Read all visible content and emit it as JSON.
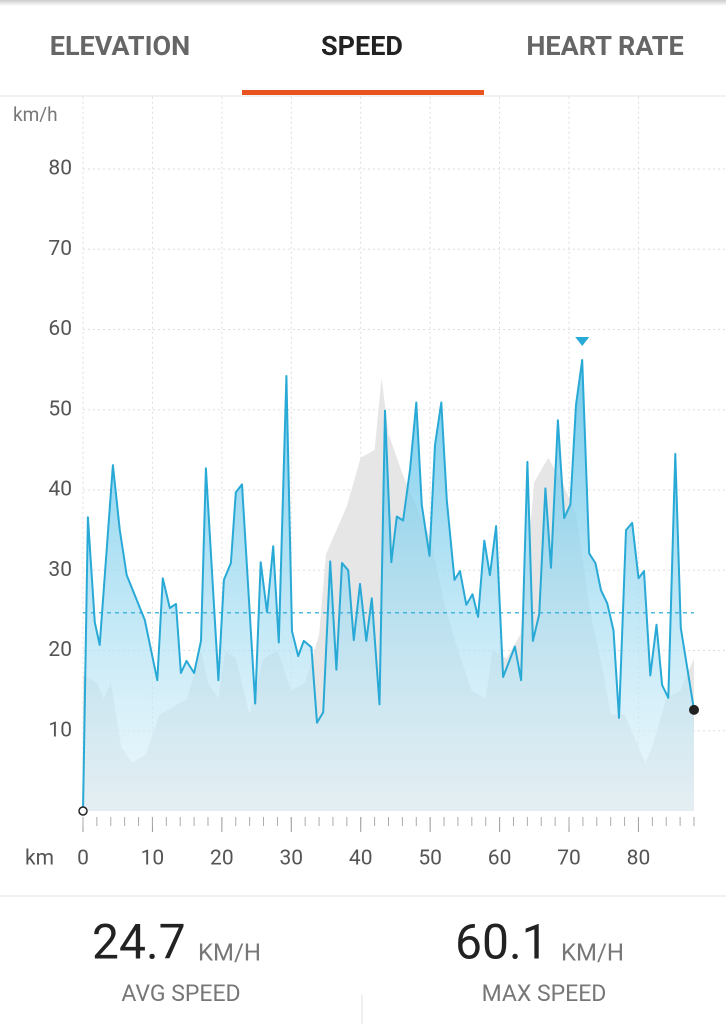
{
  "tabs": [
    "ELEVATION",
    "SPEED",
    "HEART RATE"
  ],
  "chart_data": {
    "type": "area",
    "y_unit": "km/h",
    "x_unit": "km",
    "xlim": [
      0,
      88
    ],
    "ylim": [
      0,
      89
    ],
    "xticks": [
      0,
      10,
      20,
      30,
      40,
      50,
      60,
      70,
      80
    ],
    "yticks": [
      10,
      20,
      30,
      40,
      50,
      60,
      70,
      80
    ],
    "grid": true,
    "series": [
      {
        "color": "#29a9d6",
        "x": [
          0,
          0.7,
          1.7,
          2.4,
          4.3,
          5.3,
          6.3,
          8.9,
          10.7,
          11.5,
          12.5,
          13.4,
          14.1,
          14.9,
          16,
          17,
          17.7,
          19.5,
          20.3,
          21.3,
          22,
          22.9,
          24.8,
          25.6,
          26.5,
          27.4,
          28.2,
          29.3,
          30.1,
          31,
          31.8,
          32.9,
          33.7,
          34.6,
          35.6,
          36.5,
          37.3,
          38.2,
          39,
          39.9,
          40.8,
          41.6,
          42.7,
          43.5,
          44.4,
          45.2,
          46.1,
          47.1,
          48,
          48.8,
          49.9,
          50.7,
          51.6,
          52.4,
          53.5,
          54.3,
          55.2,
          56.1,
          56.9,
          57.8,
          58.6,
          59.5,
          60.5,
          62.2,
          63.1,
          64,
          64.8,
          65.7,
          66.6,
          67.4,
          68.4,
          69.3,
          70.2,
          71,
          71.9,
          72.9,
          73.8,
          74.6,
          75.5,
          76.4,
          77.2,
          78.2,
          79.1,
          80,
          80.8,
          81.7,
          82.6,
          83.4,
          84.3,
          85.3,
          86.1,
          88
        ],
        "values": [
          0,
          36.6,
          23.5,
          20.7,
          43.1,
          35,
          29.4,
          23.8,
          16.3,
          29,
          25.3,
          25.8,
          17.2,
          18.7,
          17.2,
          21.2,
          42.7,
          16.3,
          28.8,
          30.9,
          39.7,
          40.7,
          13.4,
          31,
          24.8,
          33,
          21,
          54.2,
          22.4,
          19.3,
          21.2,
          20.4,
          11,
          12.3,
          31.1,
          17.6,
          30.9,
          30,
          21.3,
          28.3,
          21.2,
          26.5,
          13.3,
          49.9,
          31,
          36.7,
          36.2,
          42.5,
          50.9,
          38.1,
          31.8,
          45.6,
          50.9,
          38.7,
          28.8,
          29.9,
          25.7,
          27,
          24.2,
          33.7,
          29.4,
          35.5,
          16.7,
          20.5,
          16.3,
          43.5,
          21.2,
          24.5,
          40.2,
          30.3,
          48.7,
          36.5,
          38.2,
          50.6,
          56.2,
          32.1,
          30.9,
          27.5,
          25.9,
          22.5,
          11.6,
          35,
          35.9,
          29,
          29.9,
          16.9,
          23.2,
          15.7,
          14.1,
          44.5,
          22.8,
          12.6
        ]
      },
      {
        "color": "#e6e6e6",
        "x": [
          0,
          2,
          3,
          4,
          5.5,
          7,
          9,
          11,
          13,
          15,
          17,
          18,
          19.5,
          20.5,
          22,
          24,
          26,
          28,
          30,
          32,
          34,
          35,
          38,
          40,
          42,
          43,
          44,
          46,
          48,
          50,
          52,
          54,
          56,
          58,
          59,
          61,
          63,
          65,
          67,
          69,
          71,
          73,
          75,
          76,
          78,
          80,
          81,
          82,
          84,
          86,
          88
        ],
        "values": [
          17,
          16,
          14,
          16,
          8,
          6,
          7,
          12,
          13,
          14,
          20,
          16,
          14,
          20,
          19,
          12,
          19,
          20,
          15,
          16,
          22,
          32,
          38,
          44,
          45,
          54,
          47,
          42,
          38,
          34,
          26,
          20,
          15,
          14,
          20,
          19,
          22,
          41,
          44,
          41,
          37,
          25,
          17,
          12,
          12,
          8,
          6,
          8,
          14,
          15,
          19
        ]
      }
    ],
    "max_index": 74
  },
  "stats": [
    {
      "value": 24.7,
      "unit": "KM/H",
      "label": "AVG SPEED"
    },
    {
      "value": 60.1,
      "unit": "KM/H",
      "label": "MAX SPEED"
    }
  ]
}
